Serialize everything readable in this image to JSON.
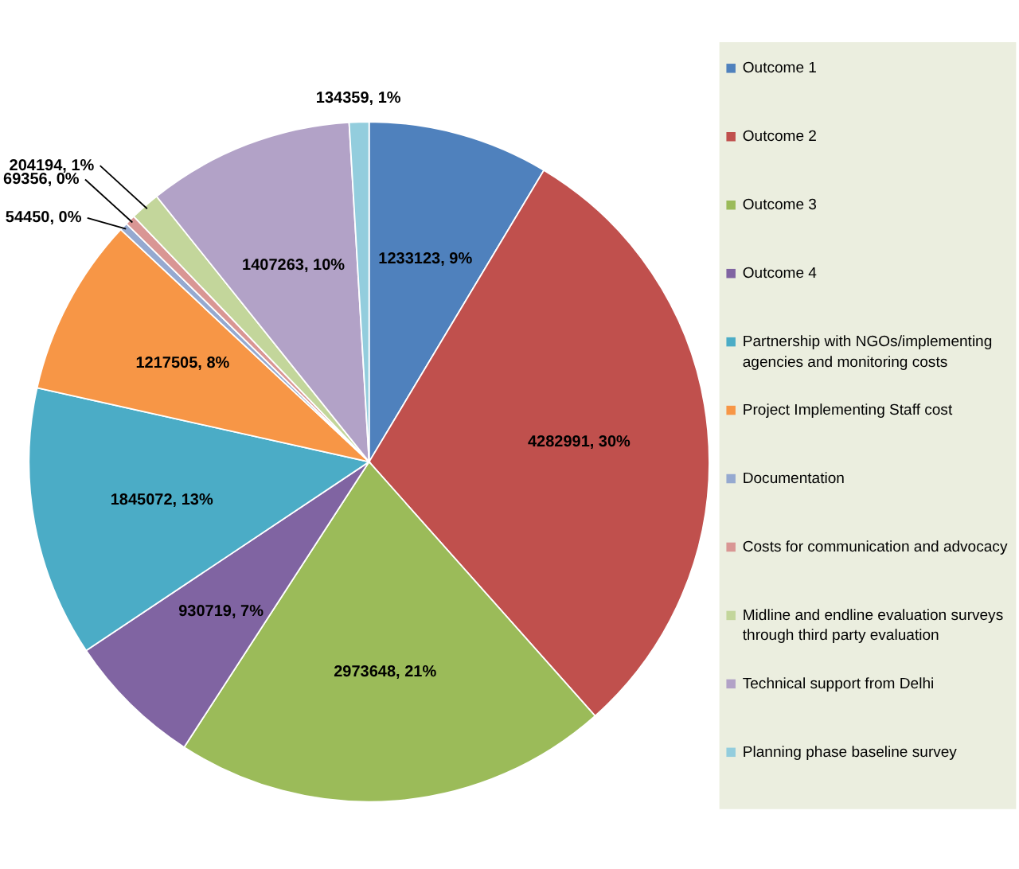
{
  "chart_data": {
    "type": "pie",
    "categories": [
      "Outcome 1",
      "Outcome 2",
      "Outcome 3",
      "Outcome 4",
      "Partnership with NGOs/implementing agencies and monitoring costs",
      "Project Implementing Staff cost",
      "Documentation",
      "Costs for communication and advocacy",
      "Midline and endline evaluation surveys through third party evaluation",
      "Technical support from Delhi",
      "Planning phase baseline survey"
    ],
    "values": [
      1233123,
      4282991,
      2973648,
      930719,
      1845072,
      1217505,
      54450,
      69356,
      204194,
      1407263,
      134359
    ],
    "value_labels": [
      "1233123, 9%",
      "4282991, 30%",
      "2973648, 21%",
      "930719, 7%",
      "1845072, 13%",
      "1217505, 8%",
      "54450, 0%",
      "69356, 0%",
      "204194, 1%",
      "1407263, 10%",
      "134359, 1%"
    ],
    "colors": [
      "#4f81bd",
      "#c0504d",
      "#9bbb59",
      "#8064a2",
      "#4bacc6",
      "#f79646",
      "#95a9d0",
      "#d99694",
      "#c3d69b",
      "#b2a2c7",
      "#93cddd"
    ],
    "legend": "right"
  }
}
